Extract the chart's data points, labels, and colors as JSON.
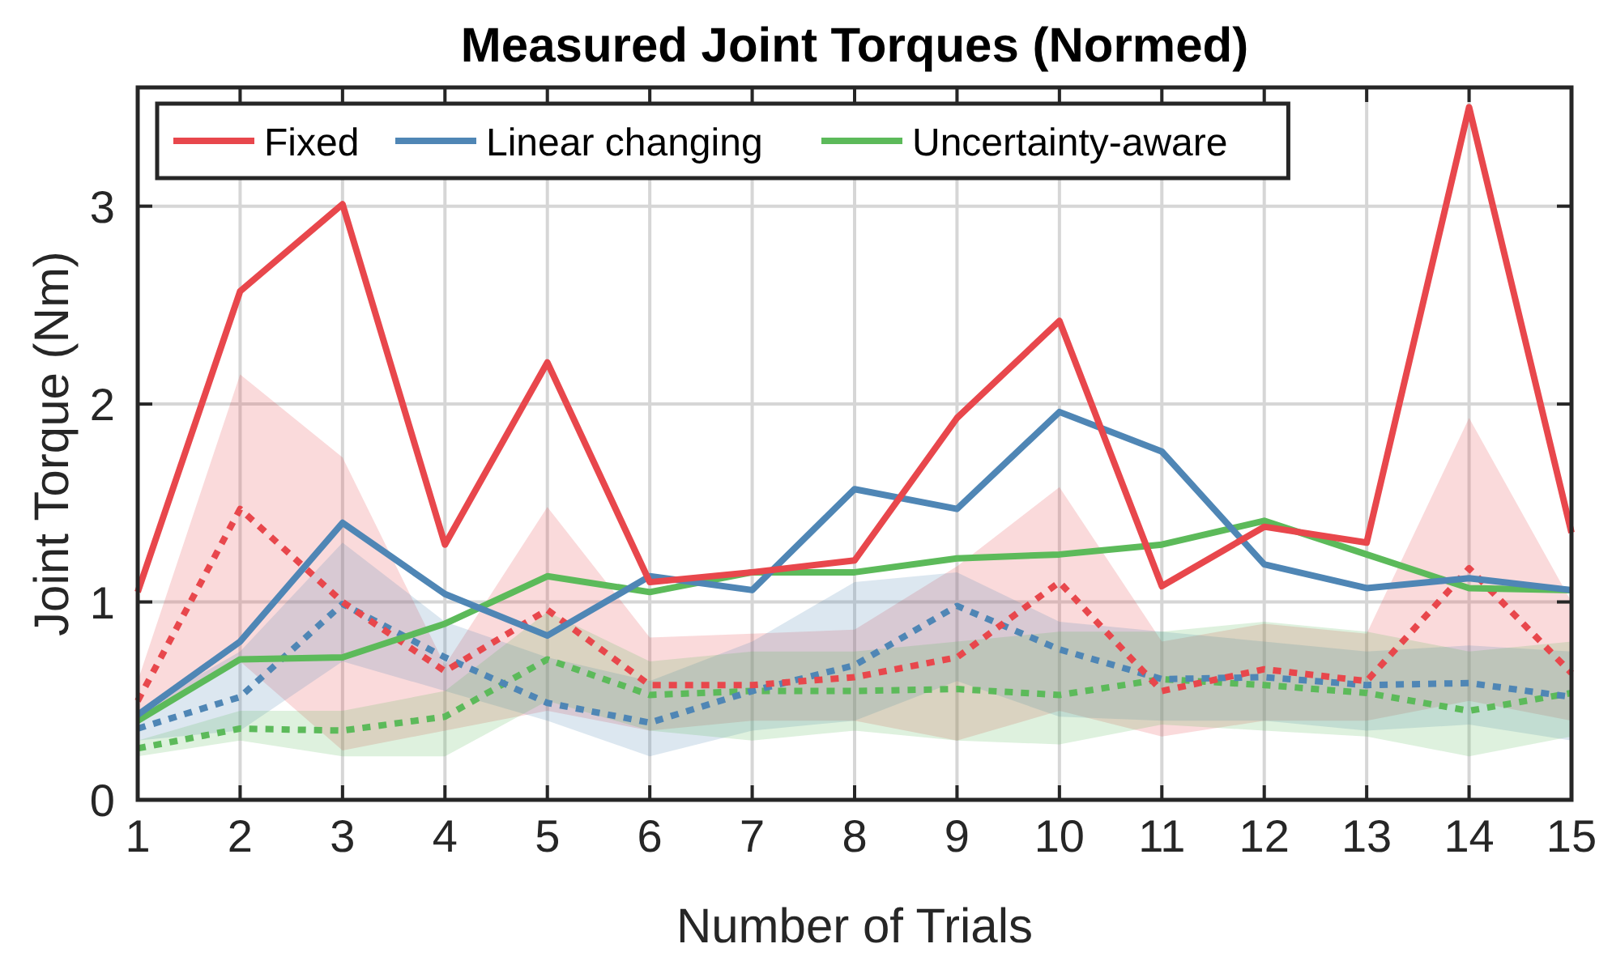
{
  "chart_data": {
    "type": "line",
    "title": "Measured Joint Torques (Normed)",
    "xlabel": "Number of Trials",
    "ylabel": "Joint Torque (Nm)",
    "x": [
      1,
      2,
      3,
      4,
      5,
      6,
      7,
      8,
      9,
      10,
      11,
      12,
      13,
      14,
      15
    ],
    "xlim": [
      1,
      15
    ],
    "xticks": [
      1,
      2,
      3,
      4,
      5,
      6,
      7,
      8,
      9,
      10,
      11,
      12,
      13,
      14,
      15
    ],
    "ylim": [
      0,
      3.6
    ],
    "yticks": [
      0,
      1,
      2,
      3
    ],
    "grid": true,
    "legend": "top left",
    "series": [
      {
        "name": "Fixed",
        "color": "#e8474c",
        "line_style": "solid",
        "values": [
          1.05,
          2.57,
          3.01,
          1.29,
          2.21,
          1.1,
          1.15,
          1.21,
          1.93,
          2.42,
          1.08,
          1.38,
          1.3,
          3.5,
          1.35
        ]
      },
      {
        "name": "Linear changing",
        "color": "#4f86b5",
        "line_style": "solid",
        "values": [
          0.43,
          0.8,
          1.4,
          1.04,
          0.83,
          1.13,
          1.06,
          1.57,
          1.47,
          1.96,
          1.76,
          1.19,
          1.07,
          1.12,
          1.06
        ]
      },
      {
        "name": "Uncertainty-aware",
        "color": "#5cba5a",
        "line_style": "solid",
        "values": [
          0.4,
          0.71,
          0.72,
          0.89,
          1.13,
          1.05,
          1.15,
          1.15,
          1.22,
          1.24,
          1.29,
          1.41,
          1.24,
          1.07,
          1.06
        ]
      },
      {
        "color": "#e8474c",
        "line_style": "dotted",
        "values": [
          0.5,
          1.47,
          1.0,
          0.65,
          0.96,
          0.58,
          0.58,
          0.62,
          0.72,
          1.1,
          0.55,
          0.66,
          0.6,
          1.17,
          0.64
        ],
        "upper": [
          0.6,
          2.15,
          1.73,
          0.68,
          1.48,
          0.82,
          0.84,
          0.86,
          1.18,
          1.58,
          0.8,
          0.89,
          0.84,
          1.93,
          1.0
        ],
        "lower": [
          0.4,
          0.7,
          0.25,
          0.35,
          0.45,
          0.35,
          0.4,
          0.4,
          0.3,
          0.45,
          0.32,
          0.4,
          0.4,
          0.5,
          0.4
        ]
      },
      {
        "color": "#4f86b5",
        "line_style": "dotted",
        "values": [
          0.36,
          0.52,
          0.99,
          0.72,
          0.49,
          0.39,
          0.55,
          0.68,
          0.98,
          0.76,
          0.61,
          0.62,
          0.58,
          0.59,
          0.52
        ],
        "upper": [
          0.45,
          0.75,
          1.3,
          0.9,
          0.72,
          0.6,
          0.8,
          1.1,
          1.15,
          0.9,
          0.85,
          0.8,
          0.75,
          0.78,
          0.75
        ],
        "lower": [
          0.3,
          0.35,
          0.7,
          0.55,
          0.4,
          0.22,
          0.35,
          0.4,
          0.6,
          0.42,
          0.4,
          0.4,
          0.35,
          0.38,
          0.3
        ]
      },
      {
        "color": "#5cba5a",
        "line_style": "dotted",
        "values": [
          0.26,
          0.36,
          0.35,
          0.42,
          0.71,
          0.53,
          0.55,
          0.55,
          0.56,
          0.53,
          0.61,
          0.58,
          0.54,
          0.45,
          0.54
        ],
        "upper": [
          0.3,
          0.45,
          0.45,
          0.55,
          0.95,
          0.7,
          0.75,
          0.75,
          0.8,
          0.85,
          0.85,
          0.9,
          0.85,
          0.75,
          0.8
        ],
        "lower": [
          0.22,
          0.3,
          0.22,
          0.22,
          0.5,
          0.35,
          0.3,
          0.35,
          0.3,
          0.28,
          0.38,
          0.35,
          0.32,
          0.22,
          0.32
        ]
      }
    ]
  }
}
